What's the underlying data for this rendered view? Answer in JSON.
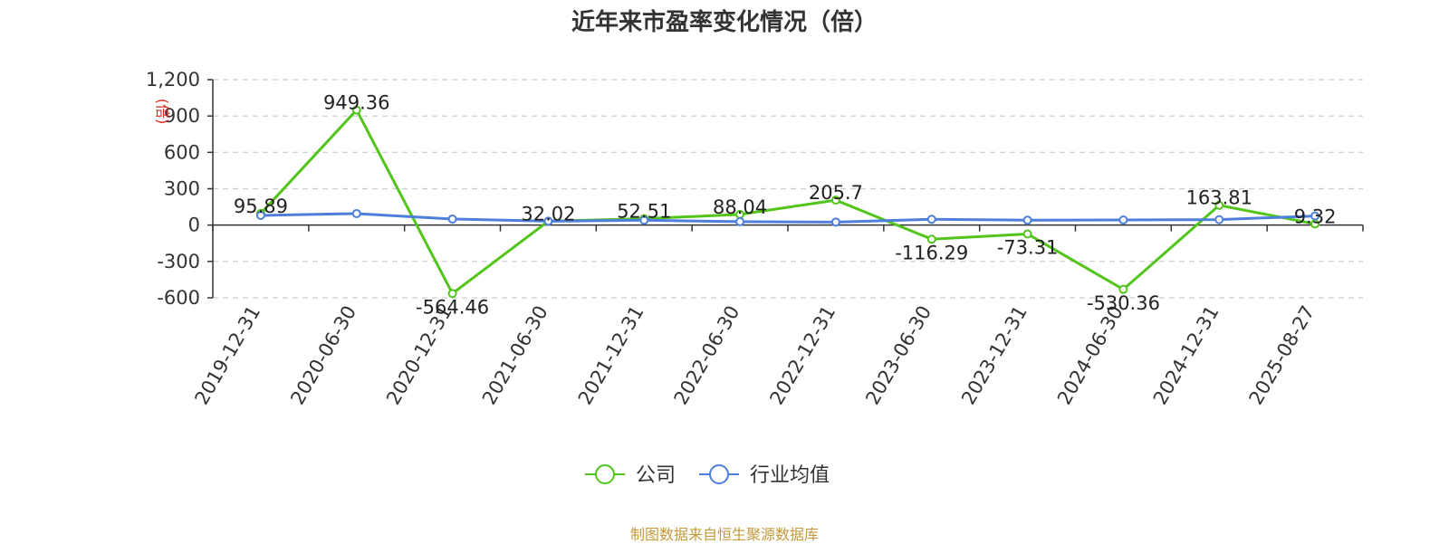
{
  "chart_data": {
    "type": "line",
    "title": "近年来市盈率变化情况（倍）",
    "ylabel": "(倍)",
    "categories": [
      "2019-12-31",
      "2020-06-30",
      "2020-12-31",
      "2021-06-30",
      "2021-12-31",
      "2022-06-30",
      "2022-12-31",
      "2023-06-30",
      "2023-12-31",
      "2024-06-30",
      "2024-12-31",
      "2025-08-27"
    ],
    "ylim": [
      -600,
      1200
    ],
    "yticks": [
      1200,
      900,
      600,
      300,
      0,
      -300,
      -600
    ],
    "ytick_labels": [
      "1,200",
      "900",
      "600",
      "300",
      "0",
      "-300",
      "-600"
    ],
    "grid": true,
    "legend_position": "bottom",
    "series": [
      {
        "name": "公司",
        "color": "#52c41a",
        "values": [
          95.89,
          949.36,
          -564.46,
          32.02,
          52.51,
          88.04,
          205.7,
          -116.29,
          -73.31,
          -530.36,
          163.81,
          9.32
        ],
        "labels": [
          "95.89",
          "949.36",
          "-564.46",
          "32.02",
          "52.51",
          "88.04",
          "205.7",
          "-116.29",
          "-73.31",
          "-530.36",
          "163.81",
          "9.32"
        ]
      },
      {
        "name": "行业均值",
        "color": "#4f7fdc",
        "values": [
          80,
          95,
          50,
          32,
          40,
          28,
          25,
          48,
          40,
          42,
          45,
          75
        ]
      }
    ]
  },
  "source_note": "制图数据来自恒生聚源数据库"
}
